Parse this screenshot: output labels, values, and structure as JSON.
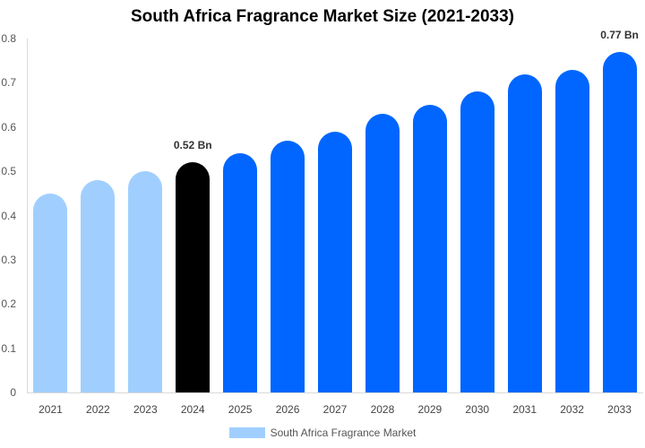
{
  "chart_data": {
    "type": "bar",
    "title": "South Africa Fragrance Market Size (2021-2033)",
    "xlabel": "",
    "ylabel": "",
    "ylim": [
      0,
      0.8
    ],
    "yticks": [
      "0",
      "0.1",
      "0.2",
      "0.3",
      "0.4",
      "0.5",
      "0.6",
      "0.7",
      "0.8"
    ],
    "categories": [
      "2021",
      "2022",
      "2023",
      "2024",
      "2025",
      "2026",
      "2027",
      "2028",
      "2029",
      "2030",
      "2031",
      "2032",
      "2033"
    ],
    "series": [
      {
        "name": "South Africa Fragrance Market",
        "values": [
          0.45,
          0.48,
          0.5,
          0.52,
          0.54,
          0.57,
          0.59,
          0.63,
          0.65,
          0.68,
          0.72,
          0.73,
          0.77
        ]
      }
    ],
    "bar_colors": [
      "#a0cfff",
      "#a0cfff",
      "#a0cfff",
      "#000000",
      "#0066ff",
      "#0066ff",
      "#0066ff",
      "#0066ff",
      "#0066ff",
      "#0066ff",
      "#0066ff",
      "#0066ff",
      "#0066ff"
    ],
    "annotations": [
      {
        "category": "2024",
        "text": "0.52 Bn"
      },
      {
        "category": "2033",
        "text": "0.77 Bn"
      }
    ],
    "legend": {
      "position": "bottom",
      "label": "South Africa Fragrance Market",
      "color": "#a0cfff"
    },
    "grid": false
  }
}
